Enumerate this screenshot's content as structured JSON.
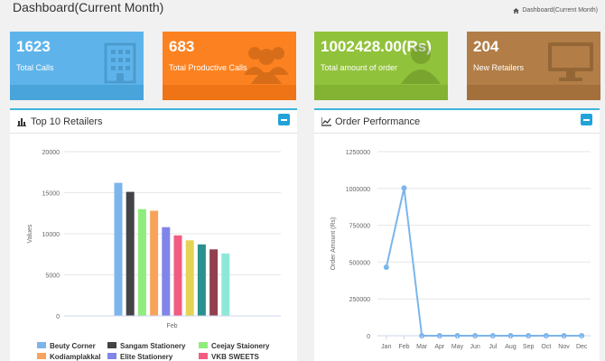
{
  "page": {
    "title": "Dashboard(Current Month)",
    "breadcrumb": "Dashboard(Current Month)"
  },
  "stats": [
    {
      "value": "1623",
      "label": "Total Calls",
      "icon": "building-icon"
    },
    {
      "value": "683",
      "label": "Total Productive Calls",
      "icon": "group-icon"
    },
    {
      "value": "1002428.00(Rs)",
      "label": "Total amount of order",
      "icon": "user-icon"
    },
    {
      "value": "204",
      "label": "New Retailers",
      "icon": "monitor-icon"
    }
  ],
  "panels": {
    "retailers": {
      "title": "Top 10 Retailers"
    },
    "orders": {
      "title": "Order Performance"
    }
  },
  "colors": {
    "accent": "#3fb4dd",
    "collapse": "#21a3d9"
  },
  "chart_data": [
    {
      "type": "bar",
      "categories": [
        "Feb"
      ],
      "series": [
        {
          "name": "Beuty Corner",
          "values": [
            16200
          ],
          "color": "#7cb5ec"
        },
        {
          "name": "Sangam Stationery",
          "values": [
            15100
          ],
          "color": "#434348"
        },
        {
          "name": "Ceejay Staionery",
          "values": [
            13000
          ],
          "color": "#90ed7d"
        },
        {
          "name": "Kodiamplakkal",
          "values": [
            12800
          ],
          "color": "#f7a35c"
        },
        {
          "name": "Elite Stationery",
          "values": [
            10800
          ],
          "color": "#8085e9"
        },
        {
          "name": "VKB SWEETS",
          "values": [
            9800
          ],
          "color": "#f15c80"
        },
        {
          "name": "",
          "values": [
            9200
          ],
          "color": "#e4d354"
        },
        {
          "name": "",
          "values": [
            8700
          ],
          "color": "#2b908f"
        },
        {
          "name": "",
          "values": [
            8100
          ],
          "color": "#91404f"
        },
        {
          "name": "",
          "values": [
            7600
          ],
          "color": "#8ee8d8"
        }
      ],
      "title": "",
      "xlabel": "",
      "ylabel": "Values",
      "ylim": [
        0,
        20000
      ],
      "yticks": [
        "0",
        "5000",
        "10000",
        "15000",
        "20000"
      ],
      "legend": "bottom"
    },
    {
      "type": "line",
      "x": [
        "Jan",
        "Feb",
        "Mar",
        "Apr",
        "May",
        "Jun",
        "Jul",
        "Aug",
        "Sep",
        "Oct",
        "Nov",
        "Dec"
      ],
      "series": [
        {
          "name": "",
          "values": [
            465000,
            1002428,
            0,
            0,
            0,
            0,
            0,
            0,
            0,
            0,
            0,
            0
          ],
          "color": "#7cb5ec"
        }
      ],
      "title": "",
      "xlabel": "",
      "ylabel": "Order Amount (Rs)",
      "ylim": [
        0,
        1250000
      ],
      "yticks": [
        "0",
        "250000",
        "500000",
        "750000",
        "1000000",
        "1250000"
      ],
      "legend": "none"
    }
  ]
}
